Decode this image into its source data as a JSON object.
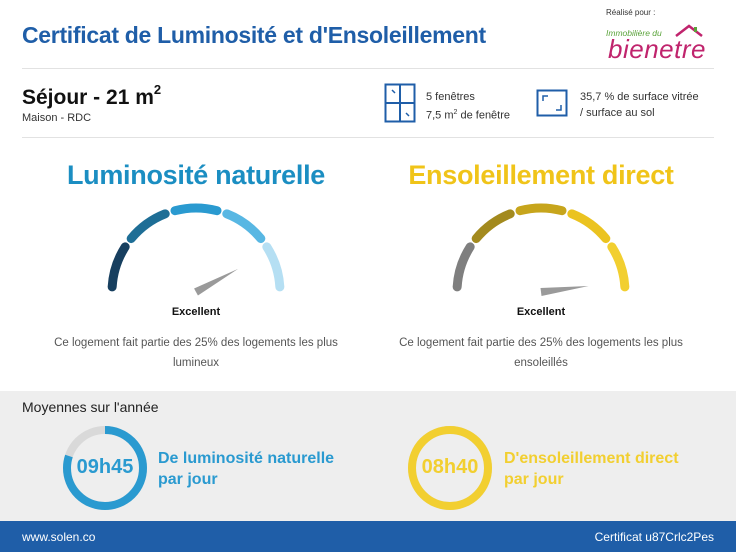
{
  "header": {
    "title": "Certificat de Luminosité et d'Ensoleillement",
    "realise_label": "Réalisé pour :",
    "logo_small": "Immobilière du",
    "logo_big": "bienetre"
  },
  "room": {
    "title": "Séjour - 21 m",
    "title_sup": "2",
    "subtitle": "Maison - RDC",
    "windows_line1": "5 fenêtres",
    "windows_line2_a": "7,5 m",
    "windows_line2_sup": "2",
    "windows_line2_b": " de fenêtre",
    "glazing_line1": "35,7 % de surface vitrée",
    "glazing_line2": "/ surface au sol"
  },
  "gauges": [
    {
      "title": "Luminosité naturelle",
      "rating": "Excellent",
      "description_line1": "Ce logement fait partie des 25% des logements les plus",
      "description_line2": "lumineux",
      "level_fraction": 0.84,
      "title_color": "#1b8ec2",
      "segment_colors": [
        "#173f5f",
        "#1e6e96",
        "#2a9ad0",
        "#58b7e3",
        "#b5dff3"
      ],
      "needle_color": "#9a9a9a"
    },
    {
      "title": "Ensoleillement direct",
      "rating": "Excellent",
      "description_line1": "Ce logement fait partie des 25% des logements les plus",
      "description_line2": "ensoleillés",
      "level_fraction": 0.96,
      "title_color": "#f0c419",
      "segment_colors": [
        "#7f7f7f",
        "#a38a1e",
        "#c7a51c",
        "#ebc320",
        "#f2cf30"
      ],
      "needle_color": "#9a9a9a"
    }
  ],
  "annual": {
    "title": "Moyennes sur l'année",
    "items": [
      {
        "value": "09h45",
        "label_line1": "De luminosité naturelle",
        "label_line2": "par jour",
        "fraction": 0.8,
        "color": "#2a9ad0"
      },
      {
        "value": "08h40",
        "label_line1": "D'ensoleillement direct",
        "label_line2": "par jour",
        "fraction": 1.0,
        "color": "#f2cf30"
      }
    ]
  },
  "footer": {
    "website": "www.solen.co",
    "certificate": "Certificat u87Crlc2Pes"
  }
}
